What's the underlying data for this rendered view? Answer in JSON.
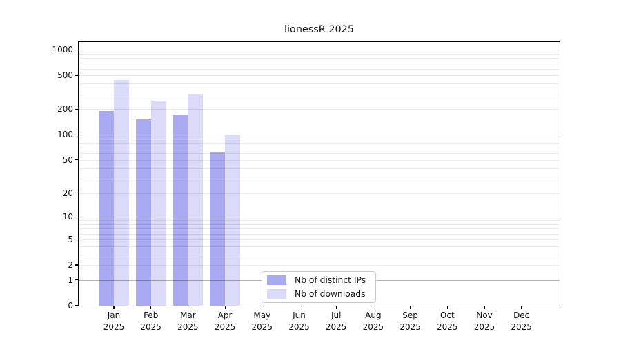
{
  "title": "lionessR 2025",
  "chart_data": {
    "type": "bar",
    "title": "lionessR 2025",
    "year": "2025",
    "months": [
      "Jan",
      "Feb",
      "Mar",
      "Apr",
      "May",
      "Jun",
      "Jul",
      "Aug",
      "Sep",
      "Oct",
      "Nov",
      "Dec"
    ],
    "series": [
      {
        "name": "Nb of distinct IPs",
        "color": "#aaaaf2",
        "values": [
          190,
          153,
          173,
          62,
          0,
          0,
          0,
          0,
          0,
          0,
          0,
          0
        ]
      },
      {
        "name": "Nb of downloads",
        "color": "#dbdbf9",
        "values": [
          443,
          250,
          301,
          100,
          0,
          0,
          0,
          0,
          0,
          0,
          0,
          0
        ]
      }
    ],
    "yscale": "log1p",
    "yticks": [
      0,
      1,
      2,
      5,
      10,
      20,
      50,
      100,
      200,
      500,
      1000
    ],
    "ylim": [
      0,
      1230
    ],
    "grid": {
      "major_ticks": [
        1,
        10,
        100,
        1000
      ],
      "minor_ticks": [
        2,
        3,
        4,
        5,
        6,
        7,
        8,
        9,
        20,
        30,
        40,
        50,
        60,
        70,
        80,
        90,
        200,
        300,
        400,
        500,
        600,
        700,
        800,
        900
      ],
      "major_color": "rgba(0,0,0,0.30)",
      "minor_color": "rgba(0,0,0,0.08)"
    },
    "legend_position": "lower center",
    "axis_color": "#000000",
    "background_color": "#ffffff"
  }
}
